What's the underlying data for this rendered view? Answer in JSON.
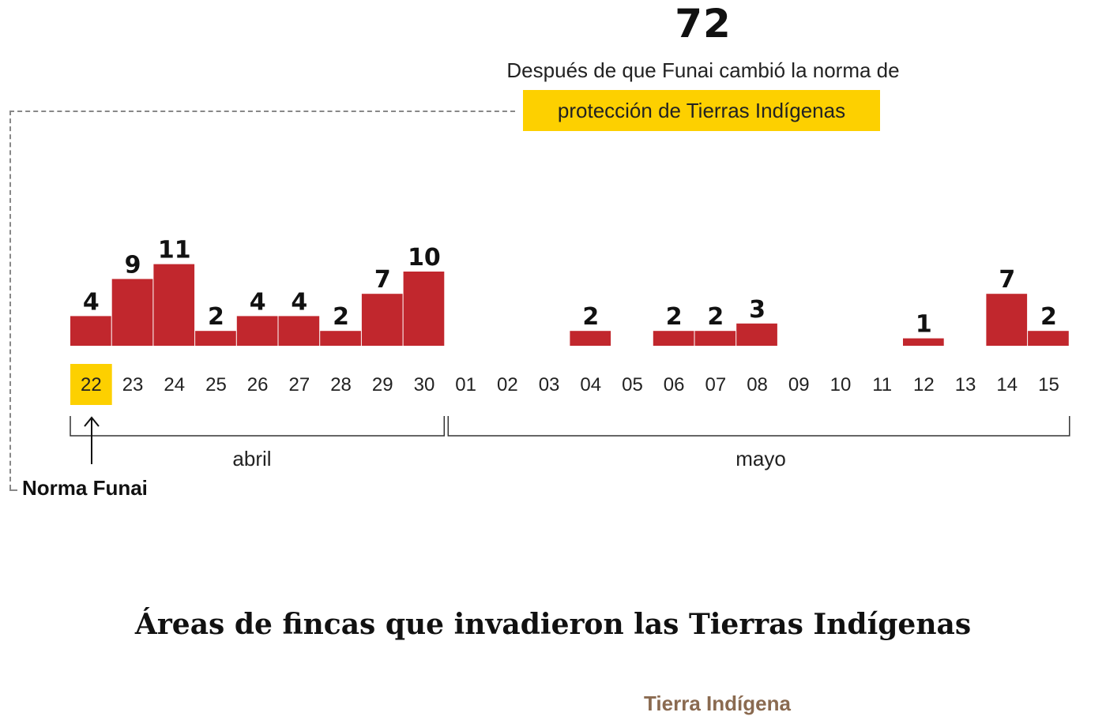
{
  "headline": {
    "total": "72",
    "description": "Después de que Funai cambió la norma de",
    "highlight": "protección de Tierras Indígenas"
  },
  "annotation": {
    "label": "Norma Funai"
  },
  "colors": {
    "bar": "#c1272d",
    "highlight": "#fdd000",
    "axis": "#333333"
  },
  "chart_data": {
    "type": "bar",
    "title": "72",
    "categories": [
      "22",
      "23",
      "24",
      "25",
      "26",
      "27",
      "28",
      "29",
      "30",
      "01",
      "02",
      "03",
      "04",
      "05",
      "06",
      "07",
      "08",
      "09",
      "10",
      "11",
      "12",
      "13",
      "14",
      "15"
    ],
    "values": [
      4,
      9,
      11,
      2,
      4,
      4,
      2,
      7,
      10,
      0,
      0,
      0,
      2,
      0,
      2,
      2,
      3,
      0,
      0,
      0,
      1,
      0,
      7,
      2
    ],
    "highlight_category": "22",
    "groups": [
      {
        "label": "abril",
        "from": "22",
        "to": "30"
      },
      {
        "label": "mayo",
        "from": "01",
        "to": "15"
      }
    ],
    "xlabel": "",
    "ylabel": "",
    "ylim": [
      0,
      11
    ]
  },
  "section": {
    "title": "Áreas de fincas que invadieron las Tierras Indígenas",
    "legend_peek": "Tierra Indígena"
  }
}
